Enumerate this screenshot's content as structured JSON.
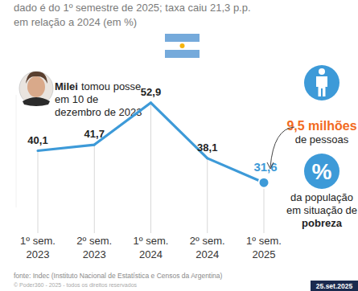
{
  "chart_data": {
    "type": "line",
    "subtitle": [
      "dado é do 1º semestre de 2025; taxa caiu 21,3 p.p.",
      "em relação a 2024 (em %)"
    ],
    "categories": [
      "1º sem. 2023",
      "2º sem. 2023",
      "1º sem. 2024",
      "2º sem. 2024",
      "1º sem. 2025"
    ],
    "values": [
      40.1,
      41.7,
      52.9,
      38.1,
      31.6
    ],
    "value_labels": [
      "40,1",
      "41,7",
      "52,9",
      "38,1",
      "31,6"
    ],
    "color": "#3d9ad8",
    "ylim": [
      25,
      55
    ],
    "yticks": [],
    "tick_labels": "x",
    "grid": true,
    "data_labels": true,
    "annotations": {
      "inauguration": {
        "bold": "Milei",
        "lines": [
          "tomou posse",
          "em 10 de",
          "dezembro de 2023"
        ]
      },
      "people": {
        "highlight": "9,5 milhões",
        "text": "de pessoas"
      },
      "share": {
        "symbol": "%",
        "lines": [
          "da população",
          "em situação de"
        ],
        "bold": "pobreza"
      }
    },
    "source": "fonte: Indec (Instituto Nacional de Estatística e Censos da Argentina)",
    "copyright": "© Poder360 - 2025 - todos os direitos reservados",
    "date": "25.set.2025"
  }
}
